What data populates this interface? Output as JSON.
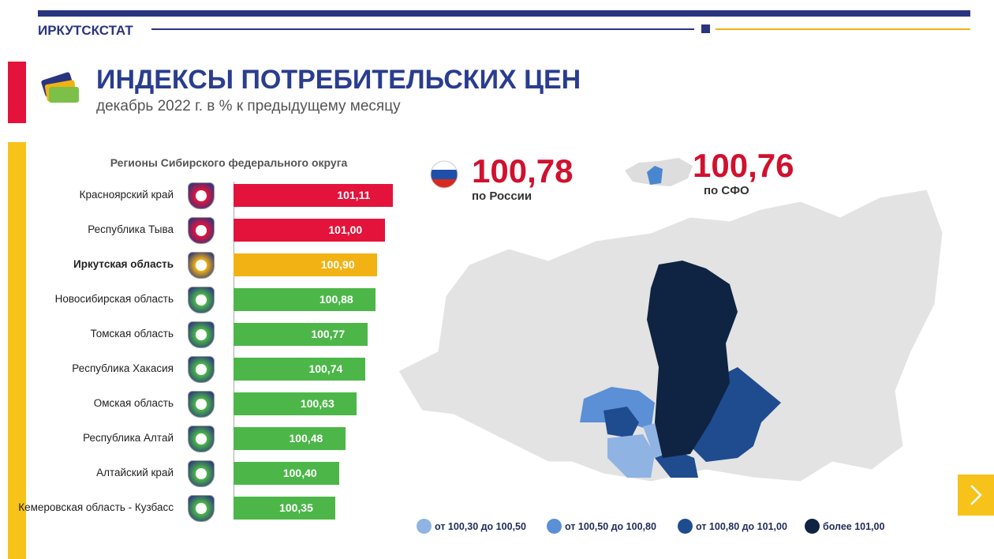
{
  "header": "ИРКУТСКСТАТ",
  "title": "ИНДЕКСЫ ПОТРЕБИТЕЛЬСКИХ ЦЕН",
  "subtitle": "декабрь 2022 г. в % к предыдущему месяцу",
  "russia": {
    "value": "100,78",
    "label": "по России"
  },
  "sfo": {
    "value": "100,76",
    "label": "по СФО"
  },
  "map_legend": [
    {
      "label": "от 100,30 до 100,50",
      "color": "#8fb3e3"
    },
    {
      "label": "от 100,50 до 100,80",
      "color": "#5b8fd6"
    },
    {
      "label": "от 100,80 до 101,00",
      "color": "#1f4b8f"
    },
    {
      "label": "более 101,00",
      "color": "#0f2342"
    }
  ],
  "chart_data": {
    "type": "bar",
    "title": "Регионы Сибирского федерального округа",
    "categories": [
      "Красноярский край",
      "Республика Тыва",
      "Иркутская область",
      "Новосибирская область",
      "Томская область",
      "Республика Хакасия",
      "Омская область",
      "Республика Алтай",
      "Алтайский край",
      "Кемеровская область - Кузбасс"
    ],
    "values": [
      101.11,
      101.0,
      100.9,
      100.88,
      100.77,
      100.74,
      100.63,
      100.48,
      100.4,
      100.35
    ],
    "value_labels": [
      "101,11",
      "101,00",
      "100,90",
      "100,88",
      "100,77",
      "100,74",
      "100,63",
      "100,48",
      "100,40",
      "100,35"
    ],
    "colors": [
      "#e4133b",
      "#e4133b",
      "#f2b213",
      "#4cb748",
      "#4cb748",
      "#4cb748",
      "#4cb748",
      "#4cb748",
      "#4cb748",
      "#4cb748"
    ],
    "xlim": [
      99,
      101.2
    ]
  }
}
